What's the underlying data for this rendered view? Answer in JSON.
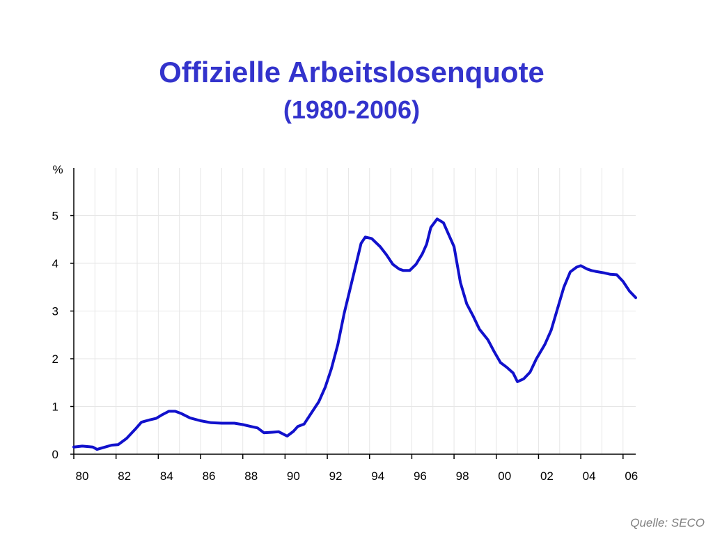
{
  "colors": {
    "title": "#3333cc",
    "line": "#1111cc",
    "grid": "#e6e6e6",
    "axis": "#000000",
    "source": "#808080"
  },
  "chart_data": {
    "type": "line",
    "title": "Offizielle Arbeitslosenquote",
    "subtitle": "(1980-2006)",
    "ylabel": "%",
    "xlabel": "",
    "xlim": [
      1980,
      2006.6
    ],
    "ylim": [
      0,
      6
    ],
    "grid": true,
    "x_ticks": [
      {
        "value": 1980,
        "label": "80"
      },
      {
        "value": 1982,
        "label": "82"
      },
      {
        "value": 1984,
        "label": "84"
      },
      {
        "value": 1986,
        "label": "86"
      },
      {
        "value": 1988,
        "label": "88"
      },
      {
        "value": 1990,
        "label": "90"
      },
      {
        "value": 1992,
        "label": "92"
      },
      {
        "value": 1994,
        "label": "94"
      },
      {
        "value": 1996,
        "label": "96"
      },
      {
        "value": 1998,
        "label": "98"
      },
      {
        "value": 2000,
        "label": "00"
      },
      {
        "value": 2002,
        "label": "02"
      },
      {
        "value": 2004,
        "label": "04"
      },
      {
        "value": 2006,
        "label": "06"
      }
    ],
    "y_ticks": [
      {
        "value": 0,
        "label": "0"
      },
      {
        "value": 1,
        "label": "1"
      },
      {
        "value": 2,
        "label": "2"
      },
      {
        "value": 3,
        "label": "3"
      },
      {
        "value": 4,
        "label": "4"
      },
      {
        "value": 5,
        "label": "5"
      }
    ],
    "series": [
      {
        "x": [
          1980.0,
          1980.4,
          1980.9,
          1981.1,
          1981.4,
          1981.8,
          1982.1,
          1982.5,
          1982.9,
          1983.2,
          1983.6,
          1983.9,
          1984.2,
          1984.5,
          1984.8,
          1985.1,
          1985.5,
          1986.0,
          1986.5,
          1987.0,
          1987.6,
          1988.0,
          1988.4,
          1988.7,
          1989.0,
          1989.4,
          1989.7,
          1990.1,
          1990.4,
          1990.6,
          1990.9,
          1991.3,
          1991.6,
          1991.9,
          1992.2,
          1992.5,
          1992.8,
          1993.1,
          1993.4,
          1993.6,
          1993.8,
          1994.1,
          1994.5,
          1994.8,
          1995.1,
          1995.4,
          1995.6,
          1995.9,
          1996.2,
          1996.5,
          1996.7,
          1996.9,
          1997.2,
          1997.5,
          1997.8,
          1998.0,
          1998.3,
          1998.6,
          1998.9,
          1999.2,
          1999.6,
          1999.9,
          2000.2,
          2000.5,
          2000.8,
          2001.0,
          2001.3,
          2001.6,
          2001.9,
          2002.3,
          2002.6,
          2002.9,
          2003.2,
          2003.5,
          2003.8,
          2004.0,
          2004.3,
          2004.5,
          2004.7,
          2005.1,
          2005.4,
          2005.7,
          2006.0,
          2006.3,
          2006.6
        ],
        "values": [
          0.15,
          0.17,
          0.15,
          0.1,
          0.14,
          0.19,
          0.2,
          0.33,
          0.52,
          0.67,
          0.72,
          0.75,
          0.83,
          0.9,
          0.9,
          0.85,
          0.76,
          0.7,
          0.66,
          0.65,
          0.65,
          0.62,
          0.58,
          0.55,
          0.45,
          0.46,
          0.47,
          0.38,
          0.48,
          0.58,
          0.63,
          0.9,
          1.1,
          1.4,
          1.8,
          2.3,
          2.95,
          3.5,
          4.05,
          4.42,
          4.55,
          4.52,
          4.35,
          4.18,
          3.98,
          3.88,
          3.85,
          3.85,
          3.98,
          4.2,
          4.4,
          4.75,
          4.93,
          4.85,
          4.55,
          4.35,
          3.6,
          3.15,
          2.9,
          2.62,
          2.4,
          2.15,
          1.92,
          1.82,
          1.7,
          1.52,
          1.58,
          1.72,
          2.0,
          2.3,
          2.6,
          3.05,
          3.5,
          3.82,
          3.92,
          3.95,
          3.88,
          3.85,
          3.83,
          3.8,
          3.77,
          3.76,
          3.62,
          3.42,
          3.28
        ]
      }
    ]
  },
  "source": "Quelle: SECO"
}
